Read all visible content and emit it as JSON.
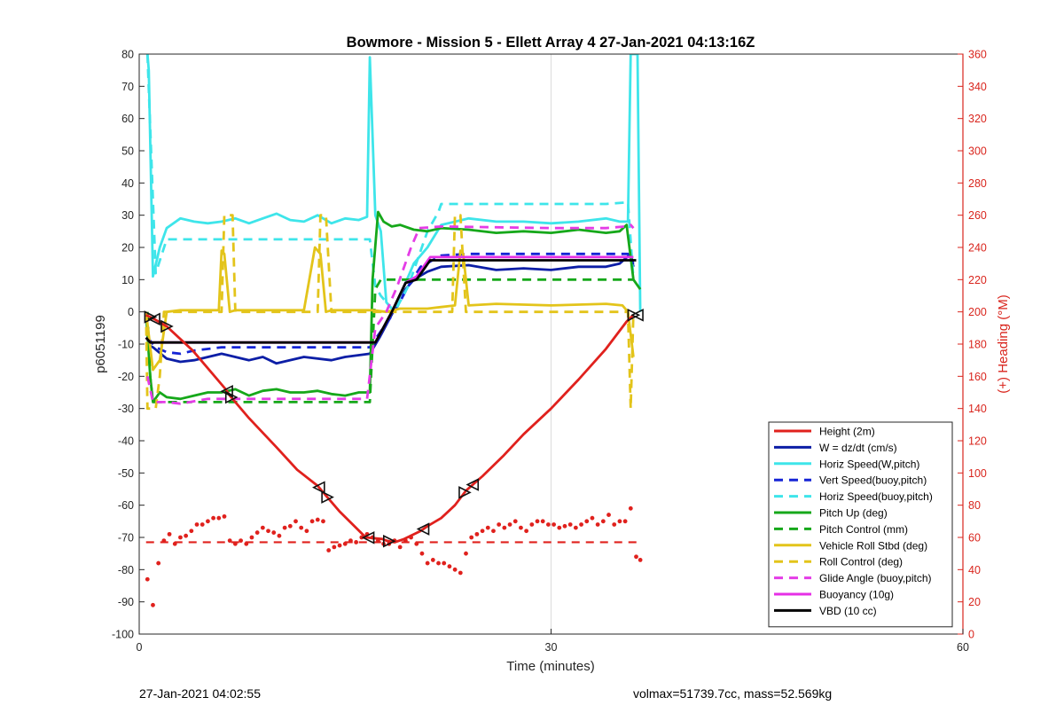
{
  "chart_data": {
    "type": "line",
    "title": "Bowmore - Mission 5 - Ellett Array 4 27-Jan-2021 04:13:16Z",
    "xlabel": "Time (minutes)",
    "ylabel": "p6051199",
    "y2label": "(+) Heading (°M)",
    "xlim": [
      0,
      60
    ],
    "ylim": [
      -100,
      80
    ],
    "y2lim": [
      0,
      360
    ],
    "xticks": [
      0,
      30,
      60
    ],
    "yticks": [
      80,
      70,
      60,
      50,
      40,
      30,
      20,
      10,
      0,
      -10,
      -20,
      -30,
      -40,
      -50,
      -60,
      -70,
      -80,
      -90,
      -100
    ],
    "y2ticks": [
      360,
      340,
      320,
      300,
      280,
      260,
      240,
      220,
      200,
      180,
      160,
      140,
      120,
      100,
      80,
      60,
      40,
      20,
      0
    ],
    "grid": true,
    "legend_position": "bottom-right",
    "series": [
      {
        "name": "Height (2m)",
        "color": "#e0211d",
        "style": "solid",
        "x": [
          0.5,
          1,
          2,
          3.9,
          6.3,
          6.6,
          8,
          10,
          11.5,
          13,
          13.6,
          14.6,
          16.5,
          17.7,
          18,
          18.6,
          19.3,
          20.5,
          21,
          22,
          23,
          23.8,
          25,
          26.5,
          28,
          30,
          32,
          34,
          35.5,
          36
        ],
        "y": [
          -1,
          -2,
          -4.5,
          -12,
          -24,
          -26,
          -33,
          -42,
          -49,
          -54,
          -57,
          -62,
          -70,
          -70.5,
          -71,
          -71.5,
          -70.5,
          -68,
          -66.5,
          -64,
          -60,
          -55.5,
          -51,
          -44.8,
          -38,
          -30,
          -21,
          -11.5,
          -3,
          -1
        ]
      },
      {
        "name": "W = dz/dt (cm/s)",
        "color": "#0c1ea6",
        "style": "solid",
        "x": [
          0.5,
          1,
          2,
          3,
          4,
          6,
          8,
          9,
          10,
          12,
          14,
          15,
          16.8,
          17.5,
          18.5,
          19,
          20,
          21,
          22,
          24,
          26,
          28,
          30,
          32,
          34,
          35,
          35.8,
          36
        ],
        "y": [
          -10,
          -11,
          -14.5,
          -15.5,
          -15,
          -13,
          -15,
          -14,
          -16,
          -14,
          -15,
          -14,
          -13,
          -8,
          0,
          5,
          10,
          12.5,
          14,
          14.5,
          13,
          13.5,
          13,
          14,
          14,
          15,
          18,
          14
        ]
      },
      {
        "name": "Horiz Speed(W,pitch)",
        "color": "#3ee5ea",
        "style": "solid",
        "x": [
          0.6,
          0.7,
          1,
          1.5,
          2,
          3,
          4,
          5,
          6,
          7,
          8,
          9,
          10,
          11,
          12,
          13,
          14,
          15,
          16,
          16.6,
          16.8,
          17.2,
          17.6,
          18,
          18.6,
          19,
          20,
          21,
          22,
          24,
          26,
          28,
          30,
          32,
          34,
          35,
          35.6,
          35.8,
          36.3,
          36.5
        ],
        "y": [
          80,
          75,
          11,
          20,
          26,
          29,
          28,
          27.5,
          28,
          29,
          27.5,
          29,
          30.5,
          28.5,
          28,
          30,
          27.5,
          29,
          28.5,
          29.5,
          79,
          30,
          25,
          3,
          0,
          5,
          15,
          20,
          27,
          29,
          28,
          28,
          27.5,
          28,
          29,
          28,
          28,
          80,
          80,
          0
        ]
      },
      {
        "name": "Vert Speed(buoy,pitch)",
        "color": "#1524d6",
        "style": "dashed",
        "x": [
          0.6,
          1.2,
          2,
          3,
          4,
          6,
          10,
          14,
          16.8,
          17.6,
          18.6,
          19.6,
          20.5,
          22,
          24,
          30,
          34,
          35.6,
          36
        ],
        "y": [
          -8,
          -11,
          -12.5,
          -13,
          -12,
          -11,
          -11,
          -11,
          -11,
          -6,
          0,
          8,
          14,
          17.5,
          18,
          18,
          18,
          18,
          15
        ]
      },
      {
        "name": "Horiz Speed(buoy,pitch)",
        "color": "#3ee5ea",
        "style": "dashed",
        "x": [
          0.6,
          1.2,
          2,
          16.8,
          17.2,
          17.6,
          18.6,
          19.6,
          21,
          21.8,
          22,
          30,
          34,
          35.6,
          36
        ],
        "y": [
          80,
          12,
          22.5,
          22.5,
          8,
          5,
          0,
          8,
          25,
          31,
          33.5,
          33.5,
          33.5,
          34,
          10
        ]
      },
      {
        "name": "Pitch Up (deg)",
        "color": "#16a81a",
        "style": "solid",
        "x": [
          0.5,
          0.8,
          1,
          1.5,
          2,
          3,
          4,
          5,
          6,
          7,
          8,
          9,
          10,
          11,
          12,
          13,
          14,
          15,
          16,
          16.8,
          17,
          17.4,
          17.8,
          18.4,
          19,
          20,
          21,
          22,
          24,
          26,
          28,
          30,
          32,
          34,
          35,
          35.5,
          36,
          36.5
        ],
        "y": [
          0,
          -20,
          -28,
          -25,
          -26.5,
          -27,
          -26,
          -25,
          -25,
          -24,
          -26,
          -24.5,
          -24,
          -25,
          -25,
          -24.5,
          -25.5,
          -26,
          -25,
          -25,
          10,
          31,
          28,
          26.5,
          27,
          25.5,
          25,
          26,
          25.5,
          24.5,
          25,
          24.5,
          25.5,
          24.5,
          25,
          27,
          10,
          7
        ]
      },
      {
        "name": "Pitch Control (mm)",
        "color": "#16a81a",
        "style": "dashed",
        "x": [
          0.6,
          0.8,
          1,
          16.8,
          17.2,
          17.6,
          35.8,
          36
        ],
        "y": [
          0,
          -20,
          -28,
          -28,
          7,
          10,
          10,
          10
        ]
      },
      {
        "name": "Vehicle Roll Stbd (deg)",
        "color": "#e3c41a",
        "style": "solid",
        "x": [
          0.5,
          1,
          1.5,
          2,
          3,
          5,
          5.8,
          6,
          6.2,
          6.6,
          7,
          12,
          12.8,
          13.2,
          13.6,
          14,
          16,
          17,
          18,
          19,
          21,
          22,
          23,
          23.4,
          23.6,
          24,
          26,
          30,
          34,
          35.2,
          35.6,
          36
        ],
        "y": [
          0,
          -18,
          -15,
          0,
          0.5,
          0.5,
          0.5,
          19,
          18,
          0,
          0.5,
          0.5,
          20,
          18,
          0,
          0.5,
          0.5,
          0.5,
          0,
          1,
          1,
          1.5,
          2,
          19,
          18,
          2,
          2.5,
          2,
          2.5,
          2,
          0,
          -14
        ]
      },
      {
        "name": "Roll Control (deg)",
        "color": "#e3c41a",
        "style": "dashed",
        "x": [
          0.5,
          0.6,
          1.2,
          1.5,
          1.8,
          2.2,
          6,
          6.2,
          6.8,
          7,
          13,
          13.2,
          13.6,
          14,
          22.8,
          23,
          23.4,
          23.8,
          35.6,
          35.8,
          36
        ],
        "y": [
          0,
          -30,
          -30,
          -20,
          0,
          0,
          0,
          30,
          30,
          0,
          0,
          30,
          30,
          0,
          0,
          30,
          30,
          0,
          0,
          -30,
          0
        ]
      },
      {
        "name": "Glide Angle (buoy,pitch)",
        "color": "#e43ce6",
        "style": "dashed",
        "x": [
          0.6,
          1,
          2,
          3,
          5,
          10,
          15,
          16.6,
          17.2,
          18,
          18.8,
          19.8,
          20.4,
          22,
          30,
          34,
          35.4,
          35.8,
          36
        ],
        "y": [
          -20,
          -28,
          -28,
          -28.5,
          -27,
          -27,
          -27,
          -27,
          -5,
          0,
          8,
          20,
          26,
          26.5,
          26,
          26,
          26.5,
          27,
          26
        ]
      },
      {
        "name": "Buoyancy (10g)",
        "color": "#e62fe6",
        "style": "solid",
        "x": [
          0.5,
          0.8,
          17.2,
          18.4,
          19.4,
          20.2,
          21.2,
          35.8,
          36
        ],
        "y": [
          -8,
          -9.5,
          -9.5,
          0,
          9,
          11,
          17,
          17,
          17
        ]
      },
      {
        "name": "VBD (10 cc)",
        "color": "#000000",
        "style": "solid",
        "x": [
          0.5,
          0.8,
          17.2,
          18.4,
          19.4,
          20.2,
          21.2,
          35.8,
          36.2
        ],
        "y": [
          -8,
          -9.5,
          -9.5,
          0,
          9,
          10,
          16,
          16,
          16
        ]
      }
    ],
    "heading_reference": {
      "color": "#e0211d",
      "style": "dashed",
      "value": 57
    },
    "heading_points": {
      "color": "#e0211d",
      "x": [
        0.6,
        1.0,
        1.4,
        1.8,
        2.2,
        2.6,
        3.0,
        3.4,
        3.8,
        4.2,
        4.6,
        5.0,
        5.4,
        5.8,
        6.2,
        6.6,
        7.0,
        7.4,
        7.8,
        8.2,
        8.6,
        9.0,
        9.4,
        9.8,
        10.2,
        10.6,
        11.0,
        11.4,
        11.8,
        12.2,
        12.6,
        13.0,
        13.4,
        13.8,
        14.2,
        14.6,
        15.0,
        15.4,
        15.8,
        16.2,
        16.6,
        17.0,
        17.4,
        17.8,
        18.2,
        18.6,
        19.0,
        19.4,
        19.8,
        20.2,
        20.6,
        21.0,
        21.4,
        21.8,
        22.2,
        22.6,
        23.0,
        23.4,
        23.8,
        24.2,
        24.6,
        25.0,
        25.4,
        25.8,
        26.2,
        26.6,
        27.0,
        27.4,
        27.8,
        28.2,
        28.6,
        29.0,
        29.4,
        29.8,
        30.2,
        30.6,
        31.0,
        31.4,
        31.8,
        32.2,
        32.6,
        33.0,
        33.4,
        33.8,
        34.2,
        34.6,
        35.0,
        35.4,
        35.8,
        36.2,
        36.5
      ],
      "y": [
        -83,
        -91,
        -78,
        -71,
        -69,
        -72,
        -70,
        -69.5,
        -68,
        -66,
        -66,
        -65,
        -64,
        -64,
        -63.5,
        -71,
        -72,
        -71,
        -72,
        -70,
        -68.5,
        -67,
        -68,
        -68.5,
        -69.5,
        -67,
        -66.5,
        -65,
        -67,
        -68,
        -65,
        -64.5,
        -65,
        -74,
        -73,
        -72.5,
        -72,
        -71,
        -71.5,
        -70,
        -69,
        -70,
        -71,
        -72,
        -72,
        -71,
        -73,
        -71,
        -70,
        -72,
        -75,
        -78,
        -77,
        -78,
        -78,
        -79,
        -80,
        -81,
        -75,
        -70,
        -69,
        -68,
        -67,
        -68,
        -66,
        -67,
        -66,
        -65,
        -67,
        -68,
        -66,
        -65,
        -65,
        -66,
        -66,
        -67,
        -66.5,
        -66,
        -67,
        -66,
        -65,
        -64,
        -66,
        -65,
        -63,
        -66,
        -65,
        -65,
        -61,
        -76,
        -77
      ]
    },
    "height_markers_x": [
      0.8,
      1.1,
      2.0,
      6.4,
      6.7,
      13.1,
      13.7,
      16.7,
      18.2,
      20.7,
      23.7,
      24.3,
      36.0,
      36.3
    ]
  },
  "footer": {
    "left": "27-Jan-2021 04:02:55",
    "right": "volmax=51739.7cc, mass=52.569kg"
  }
}
